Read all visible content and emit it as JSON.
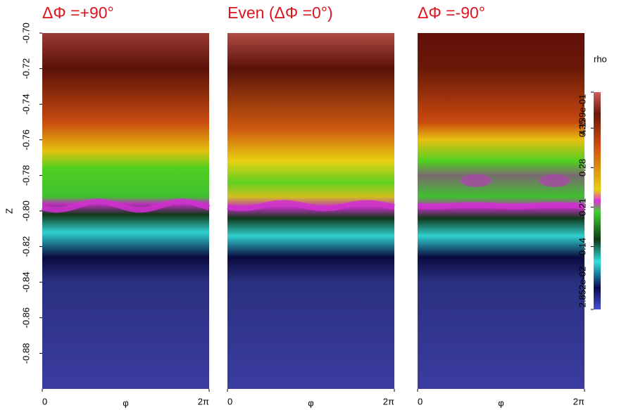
{
  "chart_data": [
    {
      "type": "heatmap",
      "title": "ΔΦ =+90°",
      "xlabel": "φ",
      "xlim": [
        0,
        6.2832
      ],
      "xticks": [
        0,
        {
          "value": 6.2832,
          "label": "2π"
        }
      ],
      "ylabel": "Z",
      "ylim": [
        -0.9,
        -0.7
      ],
      "yticks": [
        {
          "value": -0.7,
          "label": "-0.70"
        },
        {
          "value": -0.72,
          "label": "-0.72"
        },
        {
          "value": -0.74,
          "label": "-0.74"
        },
        {
          "value": -0.76,
          "label": "-0.76"
        },
        {
          "value": -0.78,
          "label": "-0.78"
        },
        {
          "value": -0.8,
          "label": "-0.80"
        },
        {
          "value": -0.82,
          "label": "-0.82"
        },
        {
          "value": -0.84,
          "label": "-0.84"
        },
        {
          "value": -0.86,
          "label": "-0.86"
        },
        {
          "value": -0.88,
          "label": "-0.88"
        }
      ]
    },
    {
      "type": "heatmap",
      "title": "Even (ΔΦ =0°)",
      "xlabel": "φ",
      "xlim": [
        0,
        6.2832
      ],
      "xticks": [
        0,
        {
          "value": 6.2832,
          "label": "2π"
        }
      ]
    },
    {
      "type": "heatmap",
      "title": "ΔΦ =-90°",
      "xlabel": "φ",
      "xlim": [
        0,
        6.2832
      ],
      "xticks": [
        0,
        {
          "value": 6.2832,
          "label": "2π"
        }
      ],
      "colorbar": {
        "label": "rho",
        "lim": [
          0.02852,
          0.4139
        ],
        "ticks": [
          {
            "value": 0.02852,
            "label": "2.852e-02"
          },
          0.14,
          0.21,
          0.28,
          0.35,
          {
            "value": 0.4139,
            "label": "4.139e-01"
          }
        ]
      }
    }
  ]
}
